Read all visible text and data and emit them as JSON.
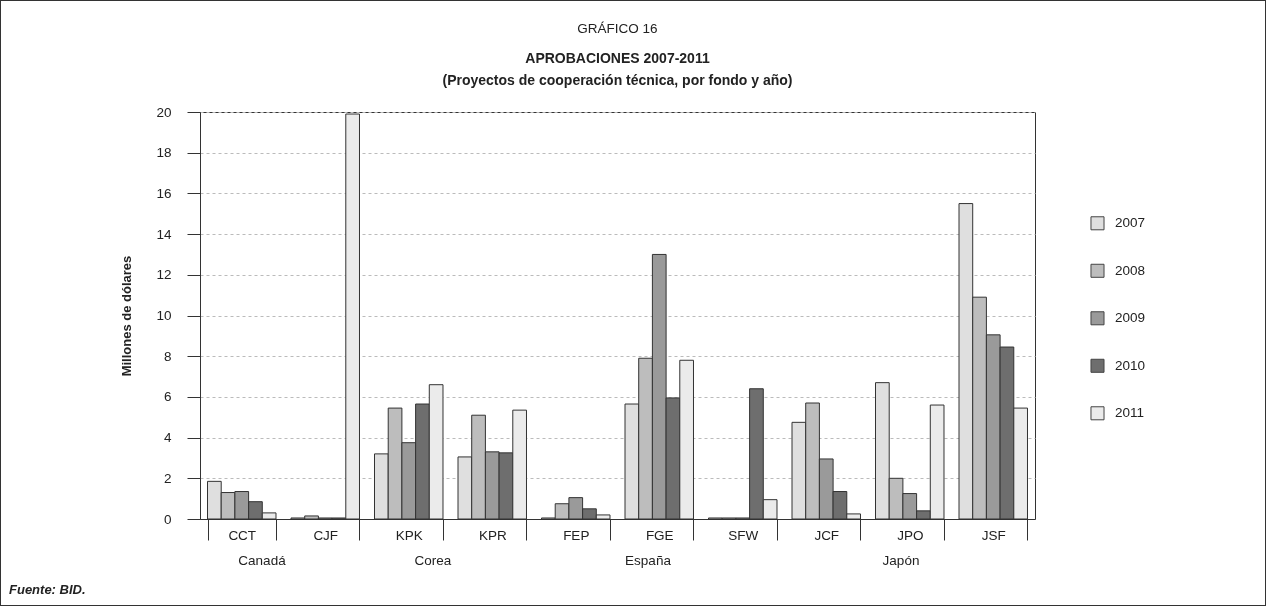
{
  "chart_data": {
    "type": "bar",
    "title": "GRÁFICO 16",
    "subtitle": "APROBACIONES 2007-2011\n(Proyectos de cooperación técnica, por fondo y año)",
    "ylabel": "Millones de dólares",
    "categories": [
      "CCT",
      "CJF",
      "KPK",
      "KPR",
      "FEP",
      "FGE",
      "SFW",
      "JCF",
      "JPO",
      "JSF"
    ],
    "series": [
      {
        "name": "2007",
        "color": "#dfdfdf",
        "values": [
          1.85,
          0.05,
          3.2,
          3.05,
          0.05,
          5.65,
          0.05,
          4.75,
          6.7,
          15.5
        ]
      },
      {
        "name": "2008",
        "color": "#bdbdbd",
        "values": [
          1.3,
          0.15,
          5.45,
          5.1,
          0.75,
          7.9,
          0.05,
          5.7,
          2.0,
          10.9
        ]
      },
      {
        "name": "2009",
        "color": "#9a9a9a",
        "values": [
          1.35,
          0.05,
          3.75,
          3.3,
          1.05,
          13.0,
          0.05,
          2.95,
          1.25,
          9.05
        ]
      },
      {
        "name": "2010",
        "color": "#6e6e6e",
        "values": [
          0.85,
          0.05,
          5.65,
          3.25,
          0.5,
          5.95,
          6.4,
          1.35,
          0.4,
          8.45
        ]
      },
      {
        "name": "2011",
        "color": "#ebebeb",
        "values": [
          0.3,
          19.9,
          6.6,
          5.35,
          0.2,
          7.8,
          0.95,
          0.25,
          5.6,
          5.45
        ]
      }
    ],
    "ylim": [
      0,
      20
    ],
    "yticks": [
      0,
      2,
      4,
      6,
      8,
      10,
      12,
      14,
      16,
      18,
      20
    ],
    "grid": "y",
    "legend": "right",
    "annotations": [
      "Canadá",
      "Corea",
      "España",
      "Japón",
      "Fuente: BID."
    ]
  }
}
